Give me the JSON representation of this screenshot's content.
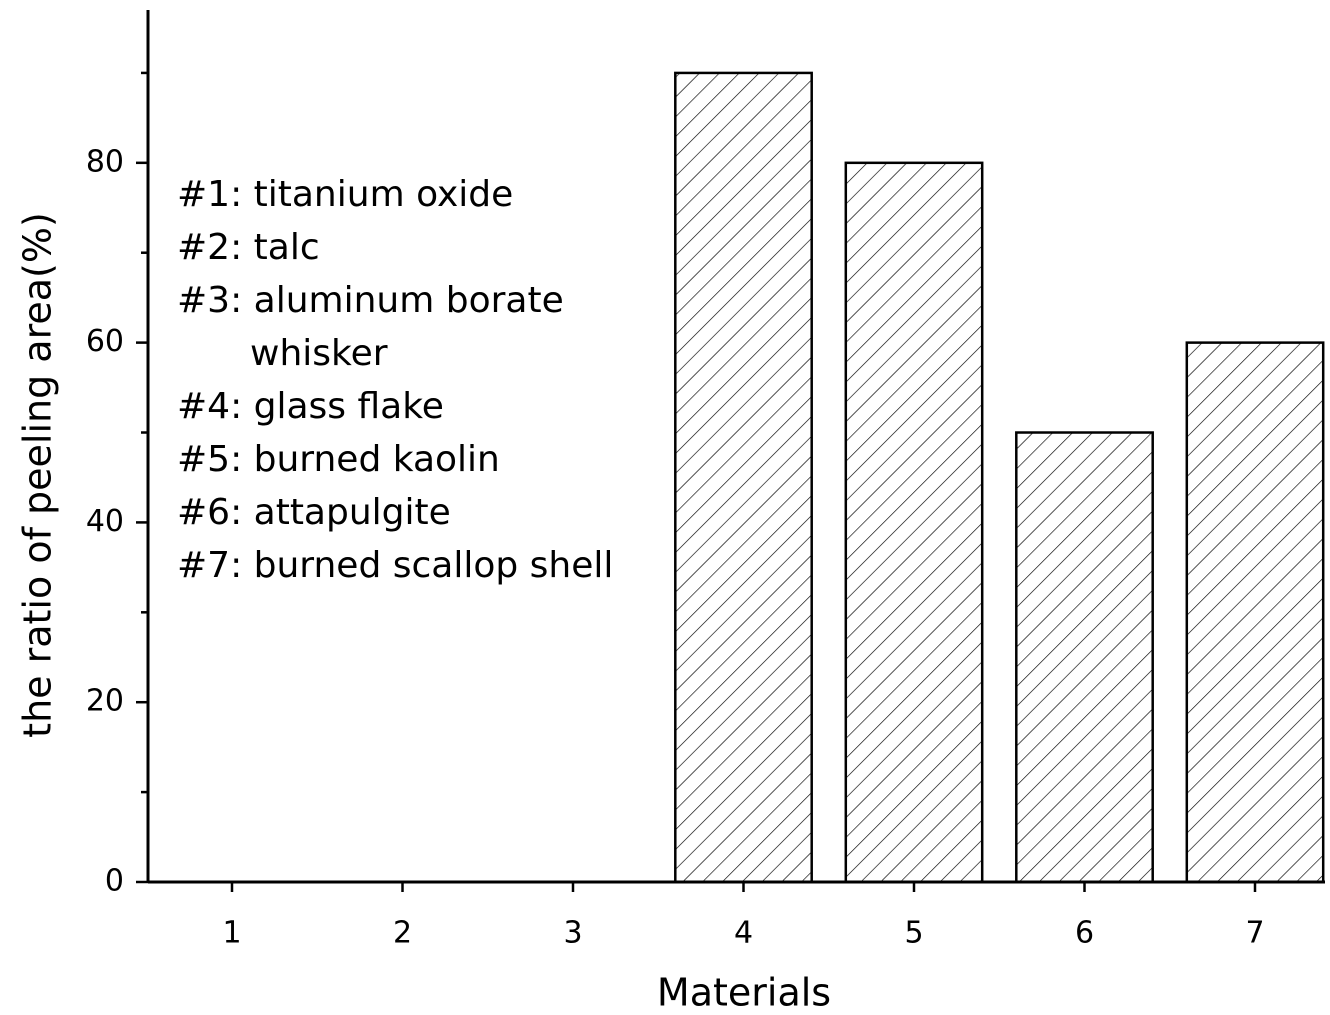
{
  "chart_data": {
    "type": "bar",
    "x_label": "Materials",
    "y_label": "the ratio of peeling area(%)",
    "categories": [
      "1",
      "2",
      "3",
      "4",
      "5",
      "6",
      "7"
    ],
    "values": [
      0,
      0,
      0,
      90,
      80,
      50,
      60
    ],
    "color": "#ffffff",
    "hatch": "diagonal",
    "ylim": [
      0,
      97
    ],
    "yticks": [
      0,
      20,
      40,
      60,
      80
    ],
    "yminor_ticks": [
      10,
      30,
      50,
      70,
      90
    ],
    "annotation_lines": [
      "#1: titanium oxide",
      "#2: talc",
      "#3: aluminum borate",
      "whisker",
      "#4: glass flake",
      "#5: burned kaolin",
      "#6: attapulgite",
      "#7: burned scallop shell"
    ]
  }
}
